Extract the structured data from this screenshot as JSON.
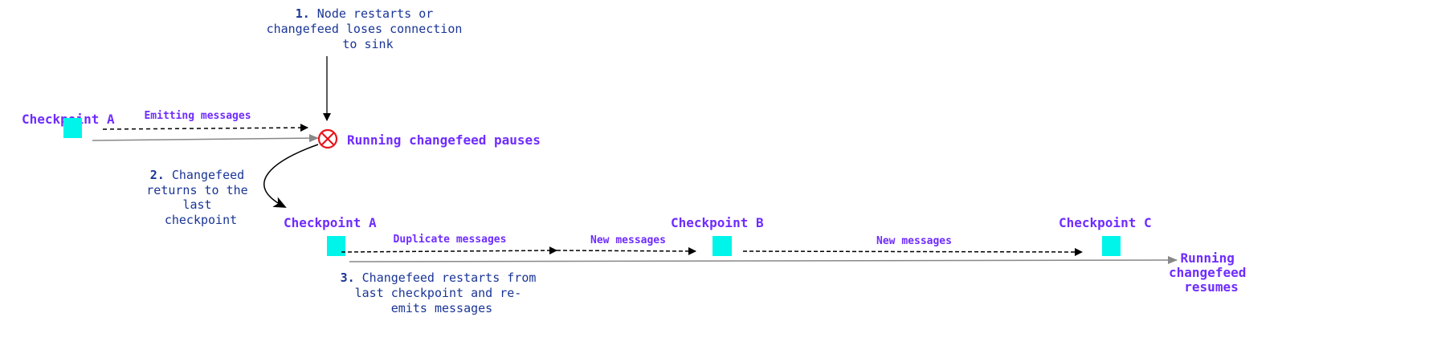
{
  "colors": {
    "accent_purple": "#6f2cff",
    "note_blue": "#1a3596",
    "checkpoint_cyan": "#00f5ea",
    "error_red": "#e8141c",
    "timeline_gray": "#888888"
  },
  "notes": {
    "step1": {
      "num": "1.",
      "lines": [
        "Node restarts or",
        "changefeed loses connection",
        "to sink"
      ]
    },
    "step2": {
      "num": "2.",
      "lines": [
        "Changefeed",
        "returns to the",
        "last",
        "checkpoint"
      ]
    },
    "step3": {
      "num": "3.",
      "lines": [
        "Changefeed restarts from",
        "last checkpoint and re-",
        "emits messages"
      ]
    }
  },
  "top_timeline": {
    "checkpoint": "Checkpoint A",
    "edge_label": "Emitting messages",
    "pause_label": "Running changefeed pauses",
    "pause_icon": "circle-x-icon"
  },
  "bottom_timeline": {
    "checkpoints": [
      "Checkpoint A",
      "Checkpoint B",
      "Checkpoint C"
    ],
    "edge_labels": [
      "Duplicate messages",
      "New messages",
      "New messages"
    ],
    "resume_label": [
      "Running",
      "changefeed",
      "resumes"
    ]
  }
}
